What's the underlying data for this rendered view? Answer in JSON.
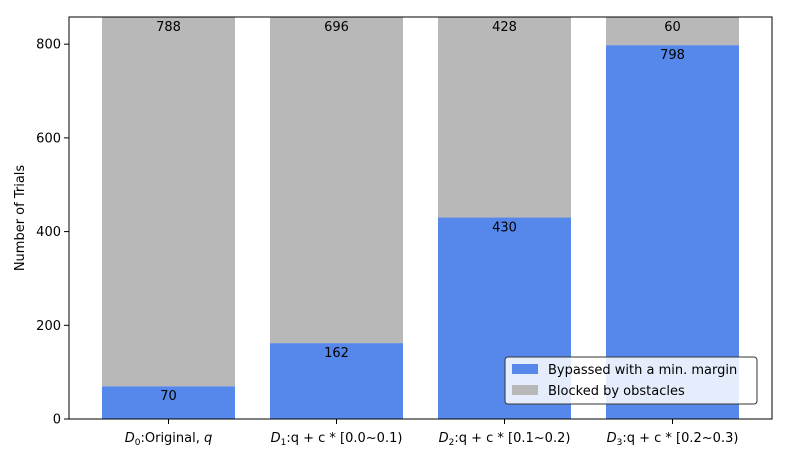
{
  "chart_data": {
    "type": "bar",
    "stacked": true,
    "categories": [
      {
        "d": "D",
        "sub": "0",
        "rest": ":Original, ",
        "var": "q"
      },
      {
        "d": "D",
        "sub": "1",
        "rest": ":q + c * [0.0~0.1)"
      },
      {
        "d": "D",
        "sub": "2",
        "rest": ":q + c * [0.1~0.2)"
      },
      {
        "d": "D",
        "sub": "3",
        "rest": ":q + c * [0.2~0.3)"
      }
    ],
    "series": [
      {
        "name": "Bypassed with a min. margin",
        "color": "#5588ea",
        "values": [
          70,
          162,
          430,
          798
        ]
      },
      {
        "name": "Blocked by obstacles",
        "color": "#b8b8b8",
        "values": [
          788,
          696,
          428,
          60
        ]
      }
    ],
    "ylabel": "Number of Trials",
    "ylim": [
      0,
      858
    ],
    "yticks": [
      0,
      200,
      400,
      600,
      800
    ],
    "grid": false,
    "legend_position": "lower-right"
  }
}
